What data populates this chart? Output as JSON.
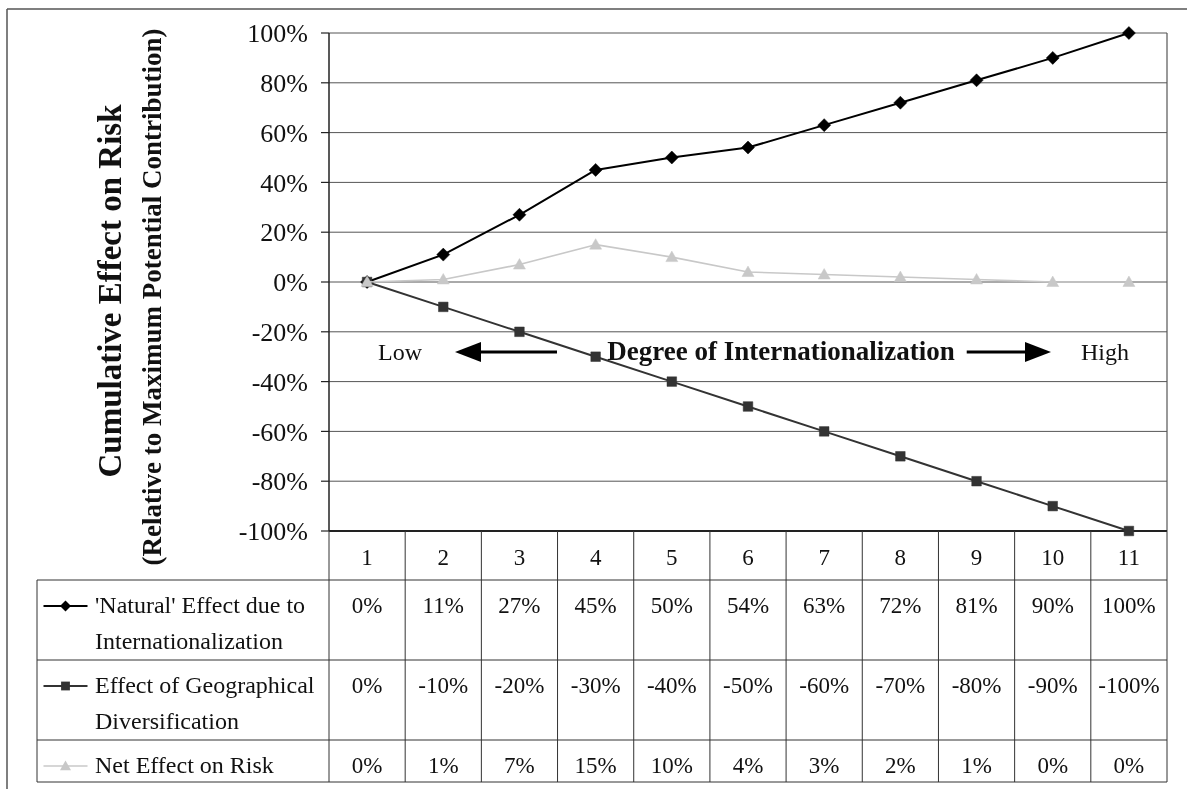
{
  "chart_data": {
    "type": "line",
    "ylabel": "Cumulative Effect on Risk\n(Relative to Maximum Potential Contribution)",
    "categories": [
      "1",
      "2",
      "3",
      "4",
      "5",
      "6",
      "7",
      "8",
      "9",
      "10",
      "11"
    ],
    "series": [
      {
        "name": "'Natural' Effect due to Internationalization",
        "color": "#000000",
        "marker": "diamond",
        "values": [
          0,
          11,
          27,
          45,
          50,
          54,
          63,
          72,
          81,
          90,
          100
        ],
        "value_labels": [
          "0%",
          "11%",
          "27%",
          "45%",
          "50%",
          "54%",
          "63%",
          "72%",
          "81%",
          "90%",
          "100%"
        ]
      },
      {
        "name": "Effect of Geographical Diversification",
        "color": "#333333",
        "marker": "square",
        "values": [
          0,
          -10,
          -20,
          -30,
          -40,
          -50,
          -60,
          -70,
          -80,
          -90,
          -100
        ],
        "value_labels": [
          "0%",
          "-10%",
          "-20%",
          "-30%",
          "-40%",
          "-50%",
          "-60%",
          "-70%",
          "-80%",
          "-90%",
          "-100%"
        ]
      },
      {
        "name": "Net Effect on Risk",
        "color": "#c8c8c8",
        "marker": "triangle",
        "values": [
          0,
          1,
          7,
          15,
          10,
          4,
          3,
          2,
          1,
          0,
          0
        ],
        "value_labels": [
          "0%",
          "1%",
          "7%",
          "15%",
          "10%",
          "4%",
          "3%",
          "2%",
          "1%",
          "0%",
          "0%"
        ]
      }
    ],
    "ylim": [
      -100,
      100
    ],
    "yticks": [
      {
        "value": -100,
        "label": "-100%"
      },
      {
        "value": -80,
        "label": "-80%"
      },
      {
        "value": -60,
        "label": "-60%"
      },
      {
        "value": -40,
        "label": "-40%"
      },
      {
        "value": -20,
        "label": "-20%"
      },
      {
        "value": 0,
        "label": "0%"
      },
      {
        "value": 20,
        "label": "20%"
      },
      {
        "value": 40,
        "label": "40%"
      },
      {
        "value": 60,
        "label": "60%"
      },
      {
        "value": 80,
        "label": "80%"
      },
      {
        "value": 100,
        "label": "100%"
      }
    ],
    "grid": "y",
    "legend": "bottom",
    "annotations": [
      "Low",
      "Degree of Internationalization",
      "High"
    ]
  }
}
